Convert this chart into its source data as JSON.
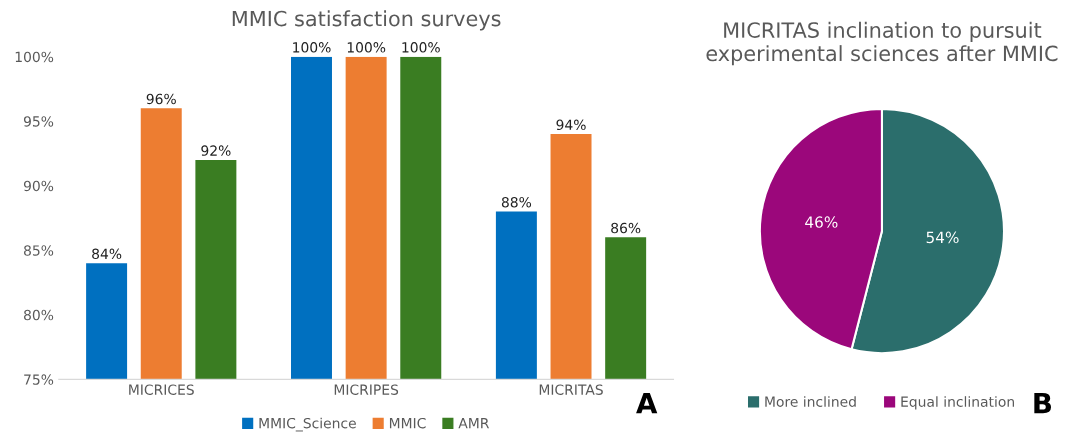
{
  "chart_data": [
    {
      "type": "bar",
      "title": "MMIC satisfaction surveys",
      "categories": [
        "MICRICES",
        "MICRIPES",
        "MICRITAS"
      ],
      "series": [
        {
          "name": "MMIC_Science",
          "color": "#0070c0",
          "values": [
            84,
            100,
            88
          ],
          "value_labels": [
            "84%",
            "100%",
            "88%"
          ]
        },
        {
          "name": "MMIC",
          "color": "#ed7d31",
          "values": [
            96,
            100,
            94
          ],
          "value_labels": [
            "96%",
            "100%",
            "94%"
          ]
        },
        {
          "name": "AMR",
          "color": "#3a7d22",
          "values": [
            92,
            100,
            86
          ],
          "value_labels": [
            "92%",
            "100%",
            "86%"
          ]
        }
      ],
      "ylim": [
        75,
        100
      ],
      "yticks": [
        {
          "value": 75,
          "label": "75%"
        },
        {
          "value": 80,
          "label": "80%"
        },
        {
          "value": 85,
          "label": "85%"
        },
        {
          "value": 90,
          "label": "90%"
        },
        {
          "value": 95,
          "label": "95%"
        },
        {
          "value": 100,
          "label": "100%"
        }
      ],
      "legend": "bottom",
      "grid": false,
      "annotations": [
        "A"
      ]
    },
    {
      "type": "pie",
      "title": "MICRITAS inclination to pursuit experimental sciences after MMIC",
      "categories": [
        "More inclined",
        "Equal inclination"
      ],
      "values": [
        54,
        46
      ],
      "colors": [
        "#2b6e6c",
        "#9b077b"
      ],
      "value_labels": [
        "54%",
        "46%"
      ],
      "legend": "bottom",
      "annotations": [
        "B"
      ]
    }
  ]
}
